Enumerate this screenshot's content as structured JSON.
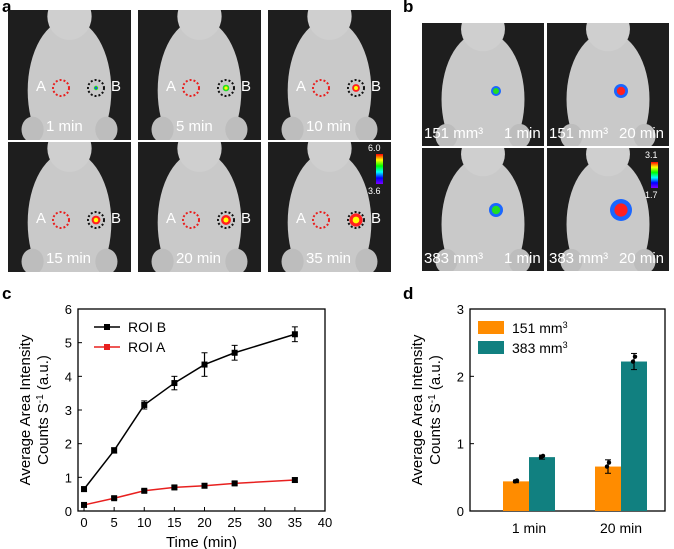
{
  "panels": {
    "a": "a",
    "b": "b",
    "c": "c",
    "d": "d"
  },
  "panel_a": {
    "roi_left": "A",
    "roi_right": "B",
    "times": [
      "1 min",
      "5 min",
      "10 min",
      "15 min",
      "20 min",
      "35 min"
    ],
    "colorbar_max": "6.0",
    "colorbar_min": "3.6"
  },
  "panel_b": {
    "volumes": [
      "151 mm³",
      "151 mm³",
      "383 mm³",
      "383 mm³"
    ],
    "times": [
      "1 min",
      "20 min",
      "1 min",
      "20 min"
    ],
    "colorbar_max": "3.1",
    "colorbar_min": "1.7"
  },
  "colors": {
    "roi_b": "#000000",
    "roi_a": "#e8201f",
    "bar_151": "#ff8c00",
    "bar_383": "#118080"
  },
  "chart_data": [
    {
      "type": "line",
      "xlabel": "Time (min)",
      "ylabel_line1": "Average Area Intensity",
      "ylabel_line2": "Counts S",
      "ylabel_sup": "-1",
      "ylabel_unit": " (a.u.)",
      "xlim": [
        -1,
        40
      ],
      "ylim": [
        0,
        6
      ],
      "xticks": [
        "0",
        "5",
        "10",
        "15",
        "20",
        "25",
        "30",
        "35",
        "40"
      ],
      "yticks": [
        "0",
        "1",
        "2",
        "3",
        "4",
        "5",
        "6"
      ],
      "series": [
        {
          "name": "ROI B",
          "color": "#000000",
          "x": [
            0,
            5,
            10,
            15,
            20,
            25,
            35
          ],
          "y": [
            0.65,
            1.8,
            3.15,
            3.8,
            4.35,
            4.7,
            5.25
          ],
          "err": [
            0.07,
            0.08,
            0.12,
            0.2,
            0.35,
            0.22,
            0.22
          ]
        },
        {
          "name": "ROI A",
          "color": "#e8201f",
          "x": [
            0,
            5,
            10,
            15,
            20,
            25,
            35
          ],
          "y": [
            0.18,
            0.38,
            0.6,
            0.7,
            0.75,
            0.82,
            0.92
          ],
          "err": [
            0.03,
            0.04,
            0.04,
            0.05,
            0.06,
            0.05,
            0.06
          ]
        }
      ]
    },
    {
      "type": "bar",
      "ylabel_line1": "Average Area Intensity",
      "ylabel_line2": "Counts S",
      "ylabel_sup": "-1",
      "ylabel_unit": " (a.u.)",
      "categories": [
        "1 min",
        "20 min"
      ],
      "ylim": [
        0,
        3
      ],
      "yticks": [
        "0",
        "1",
        "2",
        "3"
      ],
      "series": [
        {
          "name": "151 mm",
          "sup": "3",
          "color": "#ff8c00",
          "values": [
            0.44,
            0.66
          ],
          "err": [
            0.02,
            0.1
          ]
        },
        {
          "name": "383 mm",
          "sup": "3",
          "color": "#118080",
          "values": [
            0.8,
            2.22
          ],
          "err": [
            0.03,
            0.12
          ]
        }
      ]
    }
  ]
}
